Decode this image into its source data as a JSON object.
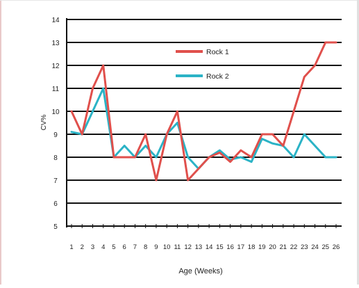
{
  "chart_data": {
    "type": "line",
    "title": "",
    "xlabel": "Age (Weeks)",
    "ylabel": "CV%",
    "x": [
      1,
      2,
      3,
      4,
      5,
      6,
      7,
      8,
      9,
      10,
      11,
      12,
      13,
      14,
      15,
      16,
      17,
      18,
      19,
      20,
      21,
      22,
      23,
      24,
      25,
      26
    ],
    "ylim": [
      5,
      14
    ],
    "yticks": [
      5,
      6,
      7,
      8,
      9,
      10,
      11,
      12,
      13,
      14
    ],
    "grid": true,
    "legend_position": "top-center",
    "series": [
      {
        "name": "Rock 1",
        "color": "#e0504c",
        "values": [
          10,
          9,
          11,
          12,
          8,
          8,
          8,
          9,
          7,
          9,
          10,
          7,
          7.5,
          8,
          8.2,
          7.8,
          8.3,
          8,
          9,
          9,
          8.5,
          10,
          11.5,
          12,
          13,
          13
        ]
      },
      {
        "name": "Rock 2",
        "color": "#2bb3c6",
        "values": [
          9.1,
          9,
          10,
          11,
          8,
          8.5,
          8,
          8.5,
          8,
          9,
          9.5,
          8,
          7.5,
          8,
          8.3,
          7.9,
          8,
          7.8,
          8.8,
          8.6,
          8.5,
          8,
          9,
          8.5,
          8,
          8
        ]
      }
    ]
  }
}
